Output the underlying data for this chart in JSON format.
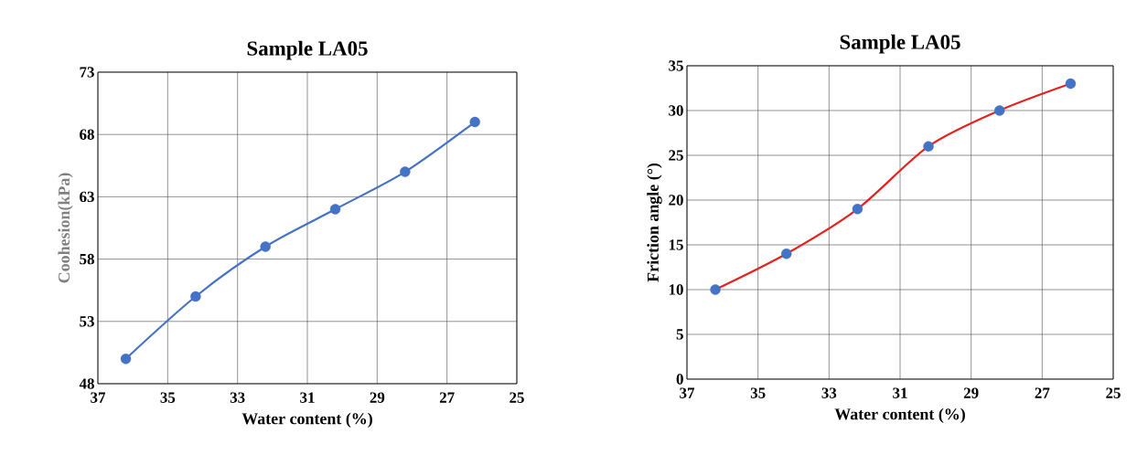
{
  "chart_data": [
    {
      "type": "line",
      "title": "Sample LA05",
      "xlabel": "Water content (%)",
      "ylabel": "Coohesion(kPa)",
      "x": [
        36.2,
        34.2,
        32.2,
        30.2,
        28.2,
        26.2
      ],
      "series": [
        {
          "color": "#4472c4",
          "values": [
            50,
            55,
            59,
            62,
            65,
            69
          ]
        }
      ],
      "xlim": [
        37,
        25
      ],
      "xticks": [
        37,
        35,
        33,
        31,
        29,
        27,
        25
      ],
      "ylim": [
        48,
        73
      ],
      "yticks": [
        48,
        53,
        58,
        63,
        68,
        73
      ],
      "grid": true,
      "marker": "circle",
      "line_style": "solid"
    },
    {
      "type": "line",
      "title": "Sample LA05",
      "xlabel": "Water content (%)",
      "ylabel": "Friction angle (°)",
      "x": [
        36.2,
        34.2,
        32.2,
        30.2,
        28.2,
        26.2
      ],
      "series": [
        {
          "color": "#e3231f",
          "colors": [
            "#4472c4",
            "#4472c4",
            "#4472c4",
            "#4472c4",
            "#4472c4",
            "#4472c4"
          ],
          "values": [
            10,
            14,
            19,
            26,
            30,
            33
          ]
        }
      ],
      "xlim": [
        37,
        25
      ],
      "xticks": [
        37,
        35,
        33,
        31,
        29,
        27,
        25
      ],
      "ylim": [
        0,
        35
      ],
      "yticks": [
        0,
        5,
        10,
        15,
        20,
        25,
        30,
        35
      ],
      "grid": true,
      "marker": "circle",
      "line_style": "solid"
    }
  ]
}
